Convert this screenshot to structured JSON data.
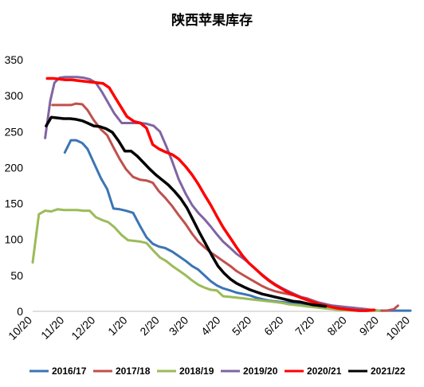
{
  "chart_data": {
    "type": "line",
    "title": "陕西苹果库存",
    "xlabel": "",
    "ylabel": "",
    "ylim": [
      0,
      350
    ],
    "yticks": [
      0,
      50,
      100,
      150,
      200,
      250,
      300,
      350
    ],
    "xlim": [
      0,
      365
    ],
    "x_ticks": [
      {
        "label": "10/20",
        "x": 0
      },
      {
        "label": "11/20",
        "x": 31
      },
      {
        "label": "12/20",
        "x": 61
      },
      {
        "label": "1/20",
        "x": 92
      },
      {
        "label": "2/20",
        "x": 123
      },
      {
        "label": "3/20",
        "x": 151
      },
      {
        "label": "4/20",
        "x": 182
      },
      {
        "label": "5/20",
        "x": 212
      },
      {
        "label": "6/20",
        "x": 243
      },
      {
        "label": "7/20",
        "x": 273
      },
      {
        "label": "8/20",
        "x": 304
      },
      {
        "label": "9/20",
        "x": 335
      },
      {
        "label": "10/20",
        "x": 365
      }
    ],
    "grid": false,
    "legend_position": "bottom",
    "series": [
      {
        "name": "2016/17",
        "color": "#3b75b4",
        "width": 3,
        "points": [
          [
            31,
            221
          ],
          [
            37,
            238
          ],
          [
            42,
            238
          ],
          [
            48,
            234
          ],
          [
            53,
            226
          ],
          [
            59,
            207
          ],
          [
            66,
            185
          ],
          [
            72,
            170
          ],
          [
            78,
            143
          ],
          [
            84,
            142
          ],
          [
            90,
            140
          ],
          [
            97,
            137
          ],
          [
            104,
            118
          ],
          [
            110,
            103
          ],
          [
            116,
            94
          ],
          [
            122,
            90
          ],
          [
            128,
            88
          ],
          [
            135,
            83
          ],
          [
            141,
            77
          ],
          [
            148,
            70
          ],
          [
            154,
            63
          ],
          [
            160,
            58
          ],
          [
            166,
            50
          ],
          [
            172,
            42
          ],
          [
            178,
            36
          ],
          [
            184,
            32
          ],
          [
            191,
            29
          ],
          [
            197,
            26
          ],
          [
            204,
            24
          ],
          [
            210,
            22
          ],
          [
            216,
            19
          ],
          [
            222,
            17
          ],
          [
            228,
            15
          ],
          [
            234,
            14
          ],
          [
            240,
            13
          ],
          [
            247,
            12
          ],
          [
            253,
            11
          ],
          [
            259,
            10
          ],
          [
            265,
            9
          ],
          [
            271,
            8
          ],
          [
            277,
            7
          ],
          [
            283,
            6
          ],
          [
            289,
            5
          ],
          [
            296,
            4
          ],
          [
            302,
            3
          ],
          [
            309,
            2
          ],
          [
            315,
            2
          ],
          [
            322,
            1
          ],
          [
            328,
            1
          ],
          [
            335,
            1
          ],
          [
            345,
            1
          ],
          [
            355,
            1
          ],
          [
            365,
            1
          ]
        ]
      },
      {
        "name": "2017/18",
        "color": "#c0504d",
        "width": 3,
        "points": [
          [
            19,
            287
          ],
          [
            25,
            287
          ],
          [
            31,
            287
          ],
          [
            37,
            287
          ],
          [
            42,
            289
          ],
          [
            48,
            288
          ],
          [
            53,
            280
          ],
          [
            59,
            266
          ],
          [
            66,
            253
          ],
          [
            72,
            245
          ],
          [
            78,
            228
          ],
          [
            84,
            212
          ],
          [
            90,
            198
          ],
          [
            97,
            187
          ],
          [
            104,
            183
          ],
          [
            110,
            182
          ],
          [
            116,
            179
          ],
          [
            122,
            167
          ],
          [
            128,
            158
          ],
          [
            135,
            146
          ],
          [
            141,
            134
          ],
          [
            148,
            121
          ],
          [
            154,
            108
          ],
          [
            160,
            97
          ],
          [
            166,
            89
          ],
          [
            172,
            82
          ],
          [
            178,
            76
          ],
          [
            184,
            70
          ],
          [
            191,
            63
          ],
          [
            197,
            56
          ],
          [
            204,
            50
          ],
          [
            210,
            45
          ],
          [
            216,
            40
          ],
          [
            222,
            35
          ],
          [
            228,
            31
          ],
          [
            234,
            28
          ],
          [
            240,
            26
          ],
          [
            247,
            24
          ],
          [
            253,
            22
          ],
          [
            259,
            20
          ],
          [
            265,
            18
          ],
          [
            271,
            15
          ],
          [
            277,
            12
          ],
          [
            283,
            10
          ],
          [
            289,
            8
          ],
          [
            296,
            7
          ],
          [
            302,
            6
          ],
          [
            309,
            5
          ],
          [
            315,
            4
          ],
          [
            322,
            3
          ],
          [
            328,
            2
          ],
          [
            335,
            1
          ],
          [
            342,
            1
          ],
          [
            349,
            3
          ],
          [
            353,
            8
          ]
        ]
      },
      {
        "name": "2018/19",
        "color": "#9bbb59",
        "width": 3,
        "points": [
          [
            0,
            68
          ],
          [
            6,
            135
          ],
          [
            12,
            140
          ],
          [
            18,
            139
          ],
          [
            24,
            142
          ],
          [
            30,
            141
          ],
          [
            36,
            141
          ],
          [
            43,
            141
          ],
          [
            49,
            140
          ],
          [
            55,
            140
          ],
          [
            61,
            131
          ],
          [
            67,
            127
          ],
          [
            73,
            124
          ],
          [
            79,
            117
          ],
          [
            86,
            106
          ],
          [
            92,
            99
          ],
          [
            98,
            98
          ],
          [
            104,
            97
          ],
          [
            110,
            95
          ],
          [
            117,
            84
          ],
          [
            123,
            75
          ],
          [
            129,
            70
          ],
          [
            135,
            63
          ],
          [
            141,
            57
          ],
          [
            148,
            50
          ],
          [
            154,
            43
          ],
          [
            160,
            37
          ],
          [
            166,
            33
          ],
          [
            172,
            30
          ],
          [
            178,
            29
          ],
          [
            184,
            21
          ],
          [
            191,
            20
          ],
          [
            197,
            19
          ],
          [
            204,
            18
          ],
          [
            210,
            17
          ],
          [
            216,
            16
          ],
          [
            222,
            15
          ],
          [
            228,
            14
          ],
          [
            234,
            13
          ],
          [
            240,
            12
          ],
          [
            247,
            10
          ],
          [
            253,
            9
          ],
          [
            259,
            8
          ],
          [
            265,
            7
          ],
          [
            271,
            6
          ],
          [
            277,
            5
          ],
          [
            283,
            4
          ],
          [
            289,
            3
          ],
          [
            296,
            2
          ],
          [
            302,
            2
          ],
          [
            309,
            1
          ],
          [
            315,
            1
          ],
          [
            322,
            1
          ],
          [
            328,
            1
          ],
          [
            335,
            1
          ]
        ]
      },
      {
        "name": "2019/20",
        "color": "#8064a2",
        "width": 3,
        "points": [
          [
            12,
            241
          ],
          [
            17,
            293
          ],
          [
            21,
            318
          ],
          [
            26,
            325
          ],
          [
            31,
            326
          ],
          [
            37,
            326
          ],
          [
            43,
            326
          ],
          [
            49,
            325
          ],
          [
            55,
            323
          ],
          [
            61,
            318
          ],
          [
            67,
            305
          ],
          [
            73,
            290
          ],
          [
            79,
            275
          ],
          [
            86,
            262
          ],
          [
            92,
            262
          ],
          [
            98,
            262
          ],
          [
            104,
            262
          ],
          [
            110,
            261
          ],
          [
            117,
            258
          ],
          [
            123,
            250
          ],
          [
            129,
            230
          ],
          [
            135,
            208
          ],
          [
            141,
            184
          ],
          [
            148,
            163
          ],
          [
            154,
            148
          ],
          [
            160,
            137
          ],
          [
            166,
            128
          ],
          [
            172,
            118
          ],
          [
            178,
            107
          ],
          [
            184,
            97
          ],
          [
            191,
            88
          ],
          [
            197,
            80
          ],
          [
            204,
            73
          ],
          [
            210,
            66
          ],
          [
            216,
            58
          ],
          [
            222,
            51
          ],
          [
            228,
            44
          ],
          [
            234,
            38
          ],
          [
            240,
            33
          ],
          [
            247,
            28
          ],
          [
            253,
            24
          ],
          [
            259,
            20
          ],
          [
            265,
            17
          ],
          [
            271,
            14
          ],
          [
            277,
            12
          ],
          [
            283,
            10
          ],
          [
            289,
            8
          ],
          [
            296,
            7
          ],
          [
            302,
            6
          ],
          [
            309,
            5
          ],
          [
            315,
            4
          ],
          [
            322,
            3
          ]
        ]
      },
      {
        "name": "2020/21",
        "color": "#ff0000",
        "width": 3.5,
        "points": [
          [
            14,
            324
          ],
          [
            20,
            324
          ],
          [
            26,
            323
          ],
          [
            32,
            322
          ],
          [
            38,
            322
          ],
          [
            44,
            321
          ],
          [
            50,
            320
          ],
          [
            56,
            319
          ],
          [
            62,
            318
          ],
          [
            68,
            317
          ],
          [
            74,
            311
          ],
          [
            79,
            299
          ],
          [
            85,
            285
          ],
          [
            91,
            271
          ],
          [
            98,
            264
          ],
          [
            104,
            262
          ],
          [
            110,
            255
          ],
          [
            116,
            232
          ],
          [
            122,
            226
          ],
          [
            128,
            222
          ],
          [
            135,
            218
          ],
          [
            141,
            212
          ],
          [
            148,
            201
          ],
          [
            154,
            190
          ],
          [
            160,
            177
          ],
          [
            166,
            162
          ],
          [
            172,
            148
          ],
          [
            178,
            132
          ],
          [
            184,
            117
          ],
          [
            191,
            102
          ],
          [
            197,
            89
          ],
          [
            203,
            77
          ],
          [
            209,
            67
          ],
          [
            216,
            58
          ],
          [
            222,
            50
          ],
          [
            228,
            43
          ],
          [
            234,
            37
          ],
          [
            240,
            32
          ],
          [
            246,
            27
          ],
          [
            252,
            23
          ],
          [
            259,
            19
          ],
          [
            265,
            16
          ],
          [
            271,
            13
          ],
          [
            277,
            10
          ],
          [
            283,
            8
          ],
          [
            289,
            6
          ],
          [
            296,
            4
          ],
          [
            302,
            3
          ],
          [
            309,
            2
          ],
          [
            315,
            1
          ],
          [
            322,
            1
          ],
          [
            330,
            2
          ]
        ]
      },
      {
        "name": "2021/22",
        "color": "#000000",
        "width": 3.5,
        "points": [
          [
            13,
            258
          ],
          [
            18,
            270
          ],
          [
            24,
            269
          ],
          [
            30,
            268
          ],
          [
            36,
            268
          ],
          [
            42,
            267
          ],
          [
            48,
            265
          ],
          [
            53,
            262
          ],
          [
            59,
            258
          ],
          [
            65,
            257
          ],
          [
            71,
            254
          ],
          [
            77,
            249
          ],
          [
            83,
            237
          ],
          [
            89,
            223
          ],
          [
            95,
            223
          ],
          [
            101,
            216
          ],
          [
            107,
            207
          ],
          [
            113,
            198
          ],
          [
            119,
            190
          ],
          [
            125,
            183
          ],
          [
            131,
            176
          ],
          [
            137,
            167
          ],
          [
            143,
            157
          ],
          [
            149,
            144
          ],
          [
            155,
            127
          ],
          [
            161,
            110
          ],
          [
            167,
            94
          ],
          [
            173,
            78
          ],
          [
            179,
            63
          ],
          [
            185,
            53
          ],
          [
            191,
            45
          ],
          [
            197,
            39
          ],
          [
            204,
            34
          ],
          [
            210,
            30
          ],
          [
            216,
            27
          ],
          [
            222,
            24
          ],
          [
            228,
            22
          ],
          [
            234,
            20
          ],
          [
            240,
            18
          ],
          [
            246,
            16
          ],
          [
            252,
            14
          ],
          [
            259,
            13
          ],
          [
            265,
            11
          ],
          [
            271,
            9
          ],
          [
            277,
            8
          ],
          [
            283,
            7
          ]
        ]
      }
    ]
  }
}
